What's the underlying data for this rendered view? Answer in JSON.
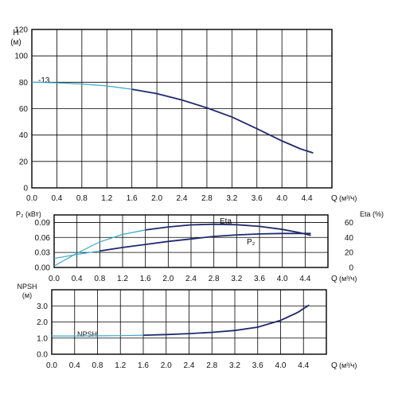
{
  "colors": {
    "curve_main": "#1f2a6e",
    "curve_low": "#39a9c9",
    "grid": "#000000"
  },
  "chart_data": [
    {
      "type": "line",
      "title": "",
      "ylabel": "H",
      "yunit": "(м)",
      "xlabel": "Q",
      "xunit": "(м³/ч)",
      "xlim": [
        0,
        4.8
      ],
      "ylim": [
        0,
        120
      ],
      "x_ticks": [
        "0.0",
        "0.4",
        "0.8",
        "1.2",
        "1.6",
        "2.0",
        "2.4",
        "2.8",
        "3.2",
        "3.6",
        "4.0",
        "4.4"
      ],
      "y_ticks": [
        "0",
        "20",
        "40",
        "60",
        "80",
        "100",
        "120"
      ],
      "grid": true,
      "annotations": [
        {
          "text": "-13"
        }
      ],
      "series": [
        {
          "points": [
            [
              0,
              80
            ],
            [
              0.4,
              79.6
            ],
            [
              0.8,
              78.7
            ],
            [
              1.2,
              77.2
            ],
            [
              1.6,
              74.7
            ],
            [
              2.0,
              71.4
            ],
            [
              2.4,
              66.6
            ],
            [
              2.8,
              60.6
            ],
            [
              3.2,
              53.7
            ],
            [
              3.6,
              44.8
            ],
            [
              4.0,
              35.6
            ],
            [
              4.3,
              29.5
            ],
            [
              4.5,
              26.5
            ]
          ]
        }
      ]
    },
    {
      "type": "line",
      "title": "",
      "ylabel": "P₂ (кВт)",
      "y2label": "Eta (%)",
      "xlabel": "Q",
      "xunit": "(м³/ч)",
      "xlim": [
        0,
        4.8
      ],
      "ylim": [
        0,
        0.105
      ],
      "y2lim": [
        0,
        70
      ],
      "x_ticks": [
        "0.0",
        "0.4",
        "0.8",
        "1.2",
        "1.6",
        "2.0",
        "2.4",
        "2.8",
        "3.2",
        "3.6",
        "4.0",
        "4.4"
      ],
      "y_ticks": [
        "0.00",
        "0.03",
        "0.06",
        "0.09"
      ],
      "y2_ticks": [
        "0",
        "20",
        "40",
        "60"
      ],
      "grid": true,
      "series": [
        {
          "name": "Eta",
          "axis": "right",
          "points": [
            [
              0,
              2
            ],
            [
              0.4,
              19
            ],
            [
              0.8,
              34
            ],
            [
              1.2,
              44
            ],
            [
              1.6,
              50
            ],
            [
              2.0,
              54
            ],
            [
              2.4,
              56.7
            ],
            [
              2.8,
              57.6
            ],
            [
              3.2,
              57
            ],
            [
              3.6,
              54.7
            ],
            [
              4.0,
              50.7
            ],
            [
              4.3,
              46.5
            ],
            [
              4.5,
              42.7
            ]
          ]
        },
        {
          "name": "P₂",
          "axis": "left",
          "points": [
            [
              0.45,
              0.027
            ],
            [
              0.8,
              0.033
            ],
            [
              1.2,
              0.04
            ],
            [
              1.6,
              0.046
            ],
            [
              2.0,
              0.052
            ],
            [
              2.4,
              0.057
            ],
            [
              2.8,
              0.062
            ],
            [
              3.2,
              0.065
            ],
            [
              3.6,
              0.067
            ],
            [
              4.0,
              0.068
            ],
            [
              4.5,
              0.068
            ]
          ]
        }
      ]
    },
    {
      "type": "line",
      "title": "",
      "ylabel": "NPSH",
      "yunit": "(м)",
      "xlabel": "Q",
      "xunit": "(м³/ч)",
      "xlim": [
        0,
        4.8
      ],
      "ylim": [
        0,
        4
      ],
      "x_ticks": [
        "0.0",
        "0.4",
        "0.8",
        "1.2",
        "1.6",
        "2.0",
        "2.4",
        "2.8",
        "3.2",
        "3.6",
        "4.0",
        "4.4"
      ],
      "y_ticks": [
        "0.0",
        "1.0",
        "2.0",
        "3.0"
      ],
      "grid": true,
      "series": [
        {
          "name": "NPSH",
          "points": [
            [
              0,
              1.13
            ],
            [
              0.4,
              1.13
            ],
            [
              0.8,
              1.14
            ],
            [
              1.2,
              1.15
            ],
            [
              1.6,
              1.18
            ],
            [
              2.0,
              1.22
            ],
            [
              2.4,
              1.28
            ],
            [
              2.8,
              1.36
            ],
            [
              3.2,
              1.47
            ],
            [
              3.6,
              1.68
            ],
            [
              4.0,
              2.1
            ],
            [
              4.3,
              2.6
            ],
            [
              4.5,
              3.05
            ]
          ]
        }
      ]
    }
  ]
}
